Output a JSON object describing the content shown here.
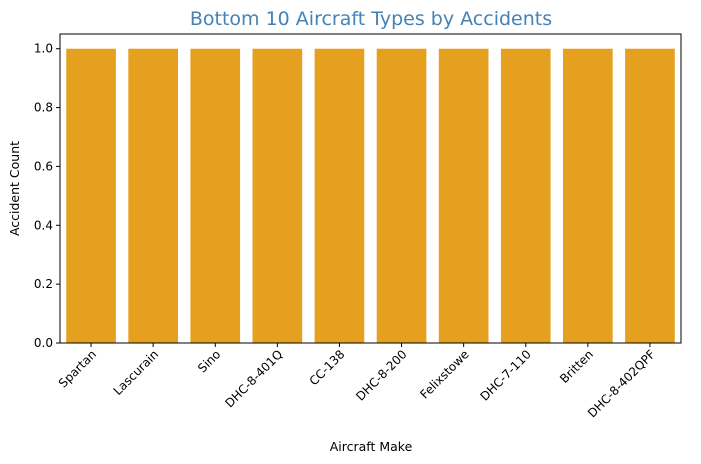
{
  "chart_data": {
    "type": "bar",
    "title": "Bottom 10 Aircraft Types by Accidents",
    "xlabel": "Aircraft Make",
    "ylabel": "Accident Count",
    "categories": [
      "Spartan",
      "Lascurain",
      "Sino",
      "DHC-8-401Q",
      "CC-138",
      "DHC-8-200",
      "Felixstowe",
      "DHC-7-110",
      "Britten",
      "DHC-8-402QPF"
    ],
    "values": [
      1,
      1,
      1,
      1,
      1,
      1,
      1,
      1,
      1,
      1
    ],
    "ylim": [
      0,
      1.05
    ],
    "yticks": [
      "0.0",
      "0.2",
      "0.4",
      "0.6",
      "0.8",
      "1.0"
    ],
    "grid": false,
    "colors": {
      "bar": "#E5A020",
      "title": "#4682B4",
      "axis": "#000000"
    }
  }
}
